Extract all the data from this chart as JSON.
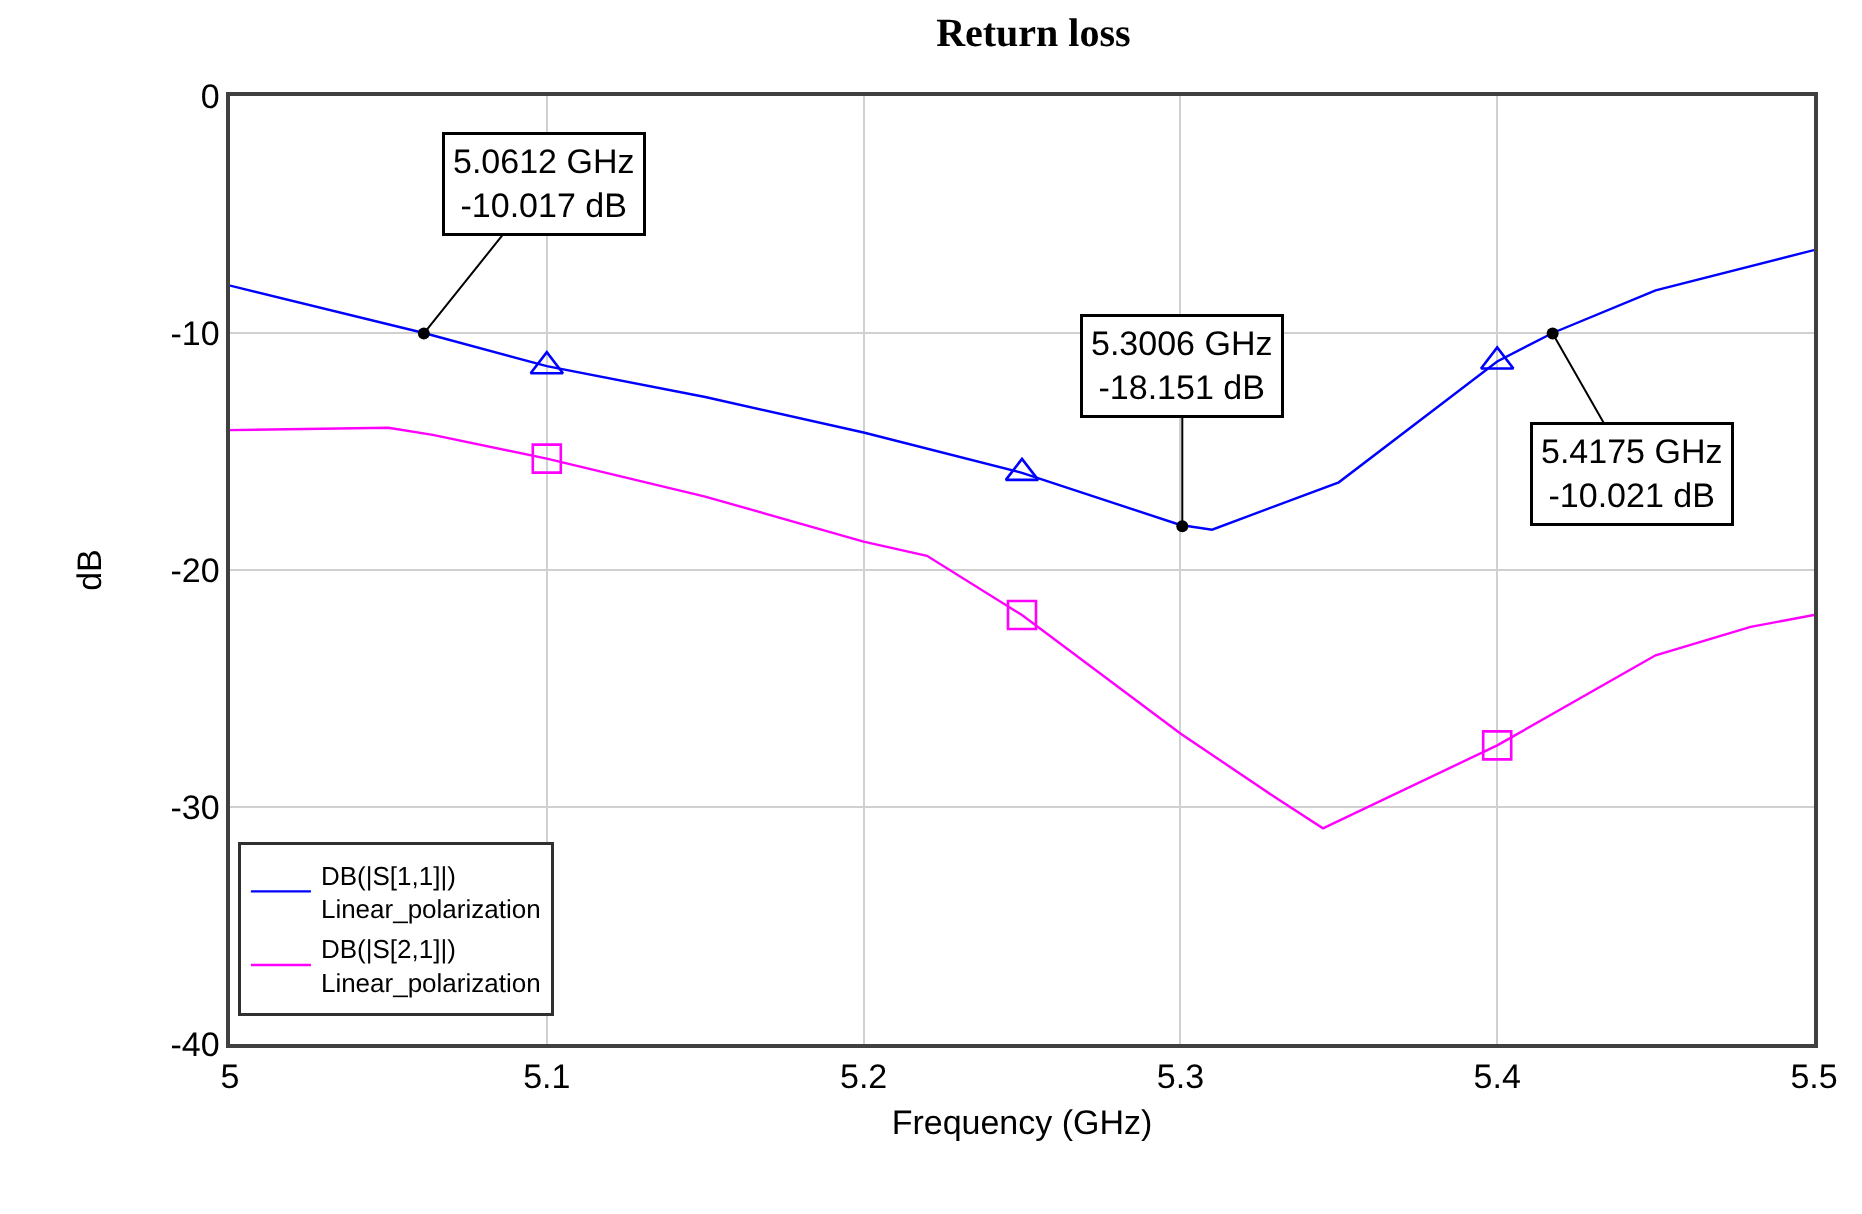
{
  "chart_data": {
    "type": "line",
    "title": "Return loss",
    "xlabel": "Frequency (GHz)",
    "ylabel": "dB",
    "xlim": [
      5,
      5.5
    ],
    "xticks": [
      5,
      5.1,
      5.2,
      5.3,
      5.4,
      5.5
    ],
    "ylim": [
      -40,
      0
    ],
    "yticks": [
      -40,
      -30,
      -20,
      -10,
      0
    ],
    "grid": true,
    "legend": "bottom left",
    "series": [
      {
        "name": "DB(|S[1,1]|)\nLinear_polarization",
        "color": "#0000ff",
        "x": [
          5.0,
          5.0612,
          5.1,
          5.15,
          5.2,
          5.25,
          5.3,
          5.31,
          5.35,
          5.4,
          5.4175,
          5.45,
          5.5
        ],
        "values": [
          -8.0,
          -10.0,
          -11.4,
          -12.7,
          -14.2,
          -15.9,
          -18.1,
          -18.3,
          -16.3,
          -11.2,
          -10.0,
          -8.2,
          -6.5
        ]
      },
      {
        "name": "DB(|S[2,1]|)\nLinear_polarization",
        "color": "#ff00ff",
        "x": [
          5.0,
          5.05,
          5.064,
          5.1,
          5.15,
          5.2,
          5.22,
          5.25,
          5.3,
          5.33,
          5.345,
          5.4,
          5.45,
          5.48,
          5.5
        ],
        "values": [
          -14.1,
          -14.0,
          -14.3,
          -15.3,
          -16.9,
          -18.8,
          -19.4,
          -21.9,
          -26.9,
          -29.6,
          -30.9,
          -27.4,
          -23.6,
          -22.4,
          -21.9
        ]
      },
      {
        "type": "scatter",
        "color": "#0000ff",
        "marker": "triangle",
        "x": [
          5.1,
          5.25,
          5.4
        ],
        "values": [
          -11.4,
          -15.9,
          -11.2
        ]
      },
      {
        "type": "scatter",
        "color": "#ff00ff",
        "marker": "square",
        "x": [
          5.1,
          5.25,
          5.4
        ],
        "values": [
          -15.3,
          -21.9,
          -27.4
        ]
      }
    ],
    "annotations": [
      {
        "text": "5.0612 GHz\n-10.017 dB",
        "x": 5.0612,
        "y": -10.017
      },
      {
        "text": "5.3006 GHz\n-18.151 dB",
        "x": 5.3006,
        "y": -18.151
      },
      {
        "text": "5.4175 GHz\n-10.021 dB",
        "x": 5.4175,
        "y": -10.021
      }
    ]
  }
}
